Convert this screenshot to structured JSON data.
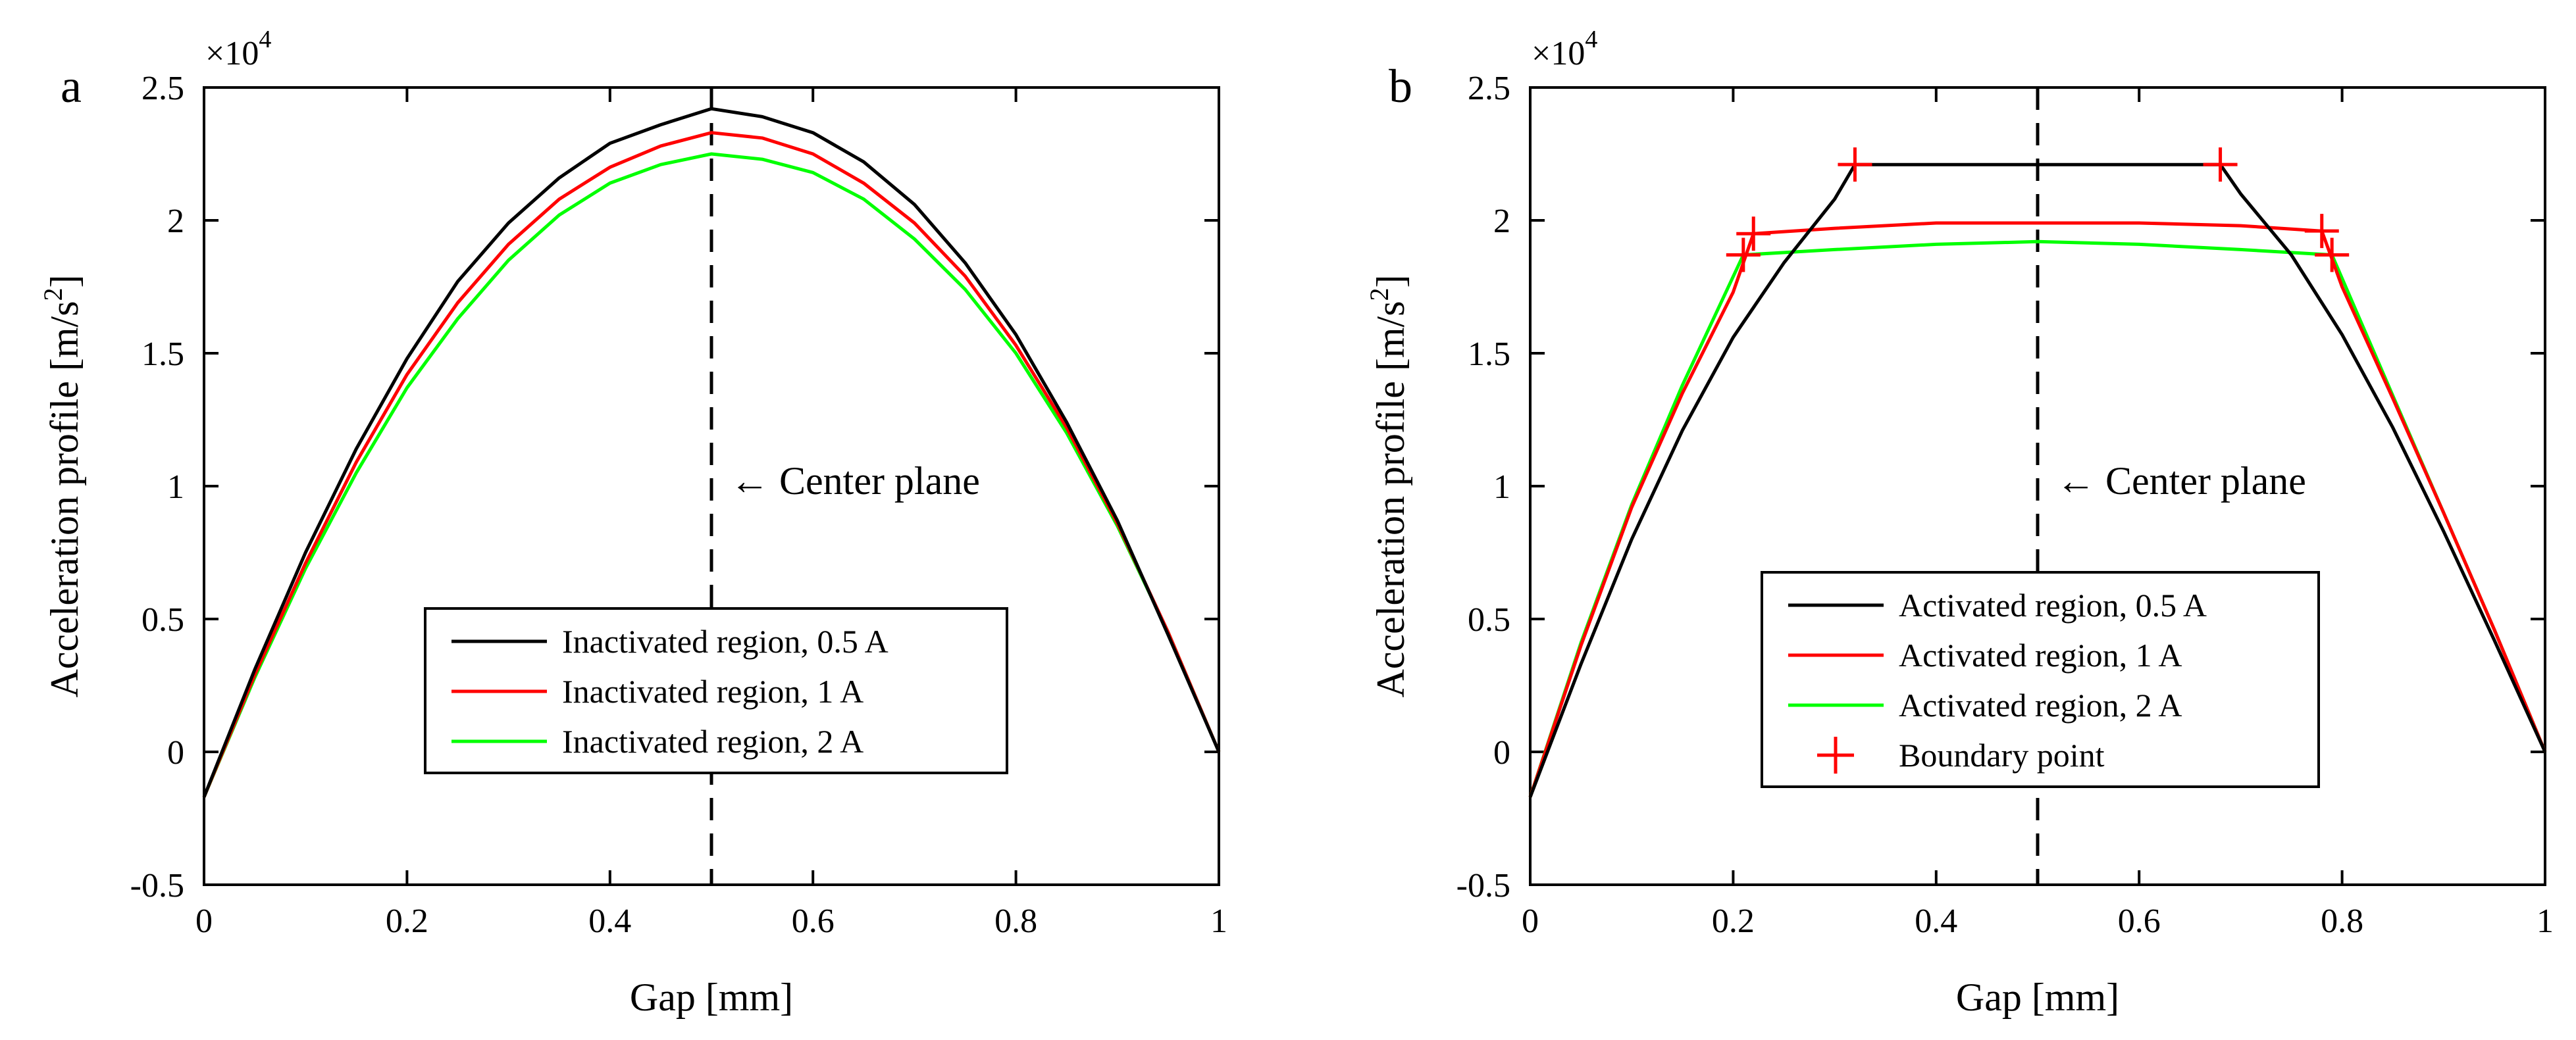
{
  "figure": {
    "scale_factor": "×10",
    "scale_exponent": "4"
  },
  "colors": {
    "black_series": "#000000",
    "red_series": "#ff0000",
    "green_series": "#00ff00",
    "marker": "#ff0000",
    "axis": "#000000",
    "background": "#ffffff"
  },
  "chart_data": [
    {
      "type": "line",
      "panel_label": "a",
      "xlabel": "Gap [mm]",
      "ylabel": "Acceleration profile [m/s",
      "ylabel_sup": "2",
      "ylabel_end": "]",
      "xlim": [
        0,
        1
      ],
      "ylim": [
        -0.5,
        2.5
      ],
      "y_multiplier": 10000,
      "xticks": [
        0,
        0.2,
        0.4,
        0.6,
        0.8,
        1
      ],
      "xtick_labels": [
        "0",
        "0.2",
        "0.4",
        "0.6",
        "0.8",
        "1"
      ],
      "yticks": [
        -0.5,
        0,
        0.5,
        1,
        1.5,
        2,
        2.5
      ],
      "ytick_labels": [
        "-0.5",
        "0",
        "0.5",
        "1",
        "1.5",
        "2",
        "2.5"
      ],
      "grid": false,
      "legend_position": "lower-center",
      "center_line_x": 0.5,
      "annotation": "← Center plane",
      "series": [
        {
          "name": "Inactivated region, 0.5 A",
          "color": "#000000",
          "x": [
            0,
            0.05,
            0.1,
            0.15,
            0.2,
            0.25,
            0.3,
            0.35,
            0.4,
            0.45,
            0.5,
            0.55,
            0.6,
            0.65,
            0.7,
            0.75,
            0.8,
            0.85,
            0.9,
            0.95,
            1
          ],
          "y": [
            -0.17,
            0.31,
            0.75,
            1.14,
            1.48,
            1.77,
            1.99,
            2.16,
            2.29,
            2.36,
            2.42,
            2.39,
            2.33,
            2.22,
            2.06,
            1.84,
            1.57,
            1.24,
            0.87,
            0.44,
            0.0
          ]
        },
        {
          "name": "Inactivated region, 1 A",
          "color": "#ff0000",
          "x": [
            0,
            0.05,
            0.1,
            0.15,
            0.2,
            0.25,
            0.3,
            0.35,
            0.4,
            0.45,
            0.5,
            0.55,
            0.6,
            0.65,
            0.7,
            0.75,
            0.8,
            0.85,
            0.9,
            0.95,
            1
          ],
          "y": [
            -0.17,
            0.29,
            0.71,
            1.09,
            1.42,
            1.69,
            1.91,
            2.08,
            2.2,
            2.28,
            2.33,
            2.31,
            2.25,
            2.14,
            1.99,
            1.79,
            1.53,
            1.22,
            0.86,
            0.45,
            0.0
          ]
        },
        {
          "name": "Inactivated region, 2 A",
          "color": "#00ff00",
          "x": [
            0,
            0.05,
            0.1,
            0.15,
            0.2,
            0.25,
            0.3,
            0.35,
            0.4,
            0.45,
            0.5,
            0.55,
            0.6,
            0.65,
            0.7,
            0.75,
            0.8,
            0.85,
            0.9,
            0.95,
            1
          ],
          "y": [
            -0.17,
            0.28,
            0.69,
            1.05,
            1.37,
            1.63,
            1.85,
            2.02,
            2.14,
            2.21,
            2.25,
            2.23,
            2.18,
            2.08,
            1.93,
            1.74,
            1.5,
            1.2,
            0.85,
            0.45,
            0.0
          ]
        }
      ],
      "markers": []
    },
    {
      "type": "line",
      "panel_label": "b",
      "xlabel": "Gap [mm]",
      "ylabel": "Acceleration profile [m/s",
      "ylabel_sup": "2",
      "ylabel_end": "]",
      "xlim": [
        0,
        1
      ],
      "ylim": [
        -0.5,
        2.5
      ],
      "y_multiplier": 10000,
      "xticks": [
        0,
        0.2,
        0.4,
        0.6,
        0.8,
        1
      ],
      "xtick_labels": [
        "0",
        "0.2",
        "0.4",
        "0.6",
        "0.8",
        "1"
      ],
      "yticks": [
        -0.5,
        0,
        0.5,
        1,
        1.5,
        2,
        2.5
      ],
      "ytick_labels": [
        "-0.5",
        "0",
        "0.5",
        "1",
        "1.5",
        "2",
        "2.5"
      ],
      "grid": false,
      "legend_position": "lower-center",
      "center_line_x": 0.5,
      "annotation": "← Center plane",
      "series": [
        {
          "name": "Activated region, 0.5 A",
          "color": "#000000",
          "x": [
            0,
            0.05,
            0.1,
            0.15,
            0.2,
            0.25,
            0.3,
            0.32,
            0.4,
            0.5,
            0.6,
            0.68,
            0.7,
            0.75,
            0.8,
            0.85,
            0.9,
            0.95,
            1
          ],
          "y": [
            -0.17,
            0.33,
            0.8,
            1.21,
            1.56,
            1.84,
            2.08,
            2.21,
            2.21,
            2.21,
            2.21,
            2.21,
            2.1,
            1.87,
            1.57,
            1.22,
            0.83,
            0.42,
            0.0
          ]
        },
        {
          "name": "Activated region, 1 A",
          "color": "#ff0000",
          "x": [
            0,
            0.05,
            0.1,
            0.15,
            0.2,
            0.22,
            0.3,
            0.4,
            0.5,
            0.6,
            0.7,
            0.78,
            0.8,
            0.85,
            0.9,
            0.95,
            1
          ],
          "y": [
            -0.17,
            0.4,
            0.92,
            1.35,
            1.73,
            1.95,
            1.97,
            1.99,
            1.99,
            1.99,
            1.98,
            1.96,
            1.75,
            1.33,
            0.9,
            0.46,
            0.0
          ]
        },
        {
          "name": "Activated region, 2 A",
          "color": "#00ff00",
          "x": [
            0,
            0.05,
            0.1,
            0.15,
            0.21,
            0.3,
            0.4,
            0.5,
            0.6,
            0.7,
            0.79,
            0.85,
            0.9,
            0.95,
            1
          ],
          "y": [
            -0.17,
            0.41,
            0.93,
            1.38,
            1.87,
            1.89,
            1.91,
            1.92,
            1.91,
            1.89,
            1.87,
            1.34,
            0.9,
            0.46,
            0.0
          ]
        }
      ],
      "markers": {
        "name": "Boundary point",
        "color": "#ff0000",
        "points": [
          {
            "x": 0.32,
            "y": 2.21
          },
          {
            "x": 0.68,
            "y": 2.21
          },
          {
            "x": 0.22,
            "y": 1.95
          },
          {
            "x": 0.78,
            "y": 1.96
          },
          {
            "x": 0.21,
            "y": 1.87
          },
          {
            "x": 0.79,
            "y": 1.87
          }
        ]
      }
    }
  ]
}
